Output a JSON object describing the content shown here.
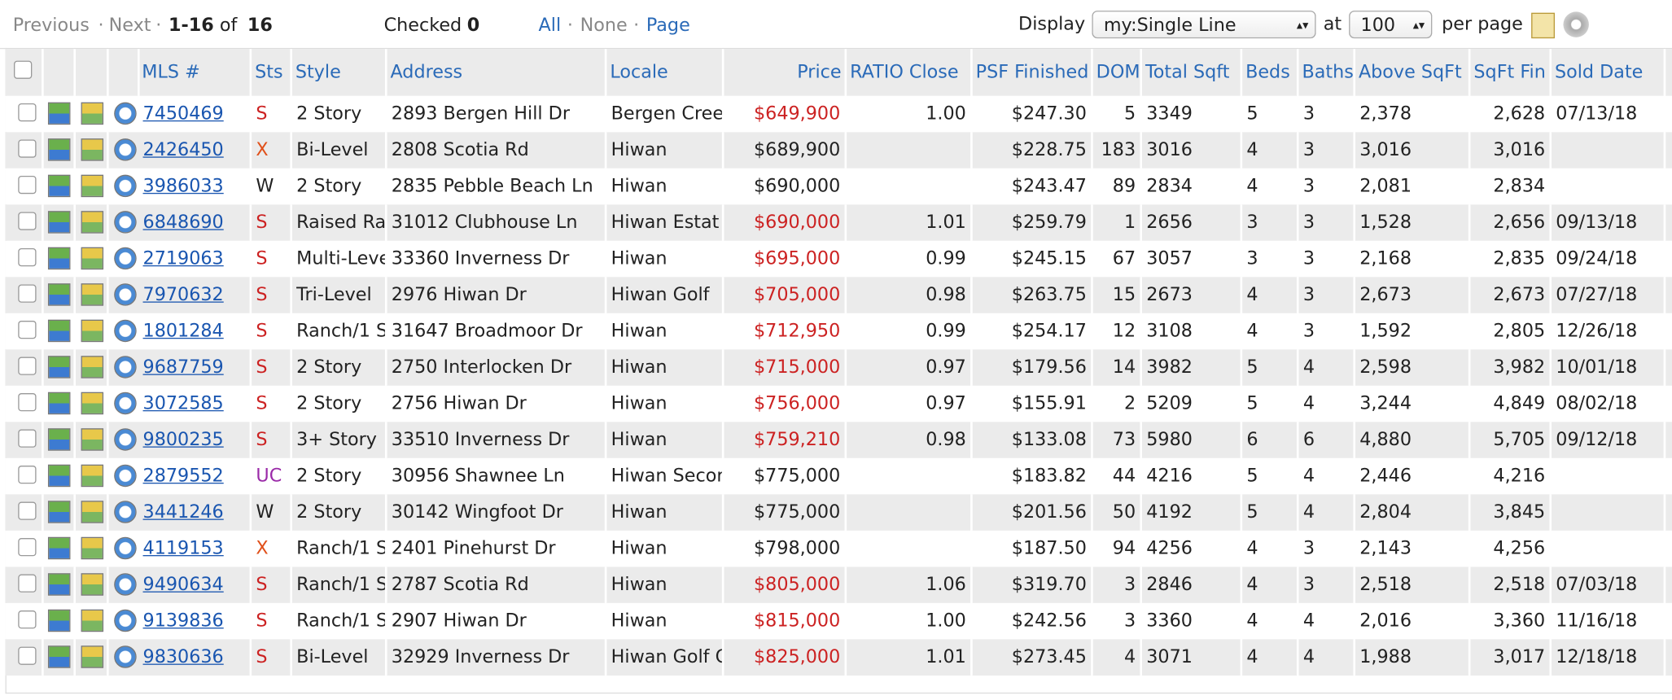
{
  "pager": {
    "previous": "Previous",
    "separator": "·",
    "next": "Next",
    "range": "1-16",
    "of": "of",
    "total": "16"
  },
  "checked": {
    "label": "Checked",
    "count": "0"
  },
  "select": {
    "all": "All",
    "none": "None",
    "page": "Page"
  },
  "display": {
    "label": "Display",
    "view": "my:Single Line",
    "at": "at",
    "per_page": "100",
    "per_page_label": "per page"
  },
  "table": {
    "headers": [
      "MLS #",
      "Sts",
      "Style",
      "Address",
      "Locale",
      "Price",
      "RATIO Close",
      "PSF Finished",
      "DOM",
      "Total Sqft",
      "Beds",
      "Baths",
      "Above SqFt",
      "SqFt Fin",
      "Sold Date"
    ],
    "rows": [
      [
        "7450469",
        "S",
        "2 Story",
        "2893 Bergen Hill Dr",
        "Bergen Cree",
        "$649,900",
        "1.00",
        "$247.30",
        "5",
        "3349",
        "5",
        "3",
        "2,378",
        "2,628",
        "07/13/18"
      ],
      [
        "2426450",
        "X",
        "Bi-Level",
        "2808 Scotia Rd",
        "Hiwan",
        "$689,900",
        null,
        "$228.75",
        "183",
        "3016",
        "4",
        "3",
        "3,016",
        "3,016",
        null
      ],
      [
        "3986033",
        "W",
        "2 Story",
        "2835 Pebble Beach Ln",
        "Hiwan",
        "$690,000",
        null,
        "$243.47",
        "89",
        "2834",
        "4",
        "3",
        "2,081",
        "2,834",
        null
      ],
      [
        "6848690",
        "S",
        "Raised Ra",
        "31012 Clubhouse Ln",
        "Hiwan Estat",
        "$690,000",
        "1.01",
        "$259.79",
        "1",
        "2656",
        "3",
        "3",
        "1,528",
        "2,656",
        "09/13/18"
      ],
      [
        "2719063",
        "S",
        "Multi-Leve",
        "33360 Inverness Dr",
        "Hiwan",
        "$695,000",
        "0.99",
        "$245.15",
        "67",
        "3057",
        "3",
        "3",
        "2,168",
        "2,835",
        "09/24/18"
      ],
      [
        "7970632",
        "S",
        "Tri-Level",
        "2976 Hiwan Dr",
        "Hiwan Golf",
        "$705,000",
        "0.98",
        "$263.75",
        "15",
        "2673",
        "4",
        "3",
        "2,673",
        "2,673",
        "07/27/18"
      ],
      [
        "1801284",
        "S",
        "Ranch/1 S",
        "31647 Broadmoor Dr",
        "Hiwan",
        "$712,950",
        "0.99",
        "$254.17",
        "12",
        "3108",
        "4",
        "3",
        "1,592",
        "2,805",
        "12/26/18"
      ],
      [
        "9687759",
        "S",
        "2 Story",
        "2750 Interlocken Dr",
        "Hiwan",
        "$715,000",
        "0.97",
        "$179.56",
        "14",
        "3982",
        "5",
        "4",
        "2,598",
        "3,982",
        "10/01/18"
      ],
      [
        "3072585",
        "S",
        "2 Story",
        "2756 Hiwan Dr",
        "Hiwan",
        "$756,000",
        "0.97",
        "$155.91",
        "2",
        "5209",
        "5",
        "4",
        "3,244",
        "4,849",
        "08/02/18"
      ],
      [
        "9800235",
        "S",
        "3+ Story",
        "33510 Inverness Dr",
        "Hiwan",
        "$759,210",
        "0.98",
        "$133.08",
        "73",
        "5980",
        "6",
        "6",
        "4,880",
        "5,705",
        "09/12/18"
      ],
      [
        "2879552",
        "UC",
        "2 Story",
        "30956 Shawnee Ln",
        "Hiwan Secor",
        "$775,000",
        null,
        "$183.82",
        "44",
        "4216",
        "5",
        "4",
        "2,446",
        "4,216",
        null
      ],
      [
        "3441246",
        "W",
        "2 Story",
        "30142 Wingfoot Dr",
        "Hiwan",
        "$775,000",
        null,
        "$201.56",
        "50",
        "4192",
        "5",
        "4",
        "2,804",
        "3,845",
        null
      ],
      [
        "4119153",
        "X",
        "Ranch/1 S",
        "2401 Pinehurst Dr",
        "Hiwan",
        "$798,000",
        null,
        "$187.50",
        "94",
        "4256",
        "4",
        "3",
        "2,143",
        "4,256",
        null
      ],
      [
        "9490634",
        "S",
        "Ranch/1 S",
        "2787 Scotia Rd",
        "Hiwan",
        "$805,000",
        "1.06",
        "$319.70",
        "3",
        "2846",
        "4",
        "3",
        "2,518",
        "2,518",
        "07/03/18"
      ],
      [
        "9139836",
        "S",
        "Ranch/1 S",
        "2907 Hiwan Dr",
        "Hiwan",
        "$815,000",
        "1.00",
        "$242.56",
        "3",
        "3360",
        "4",
        "4",
        "2,016",
        "3,360",
        "11/16/18"
      ],
      [
        "9830636",
        "S",
        "Bi-Level",
        "32929 Inverness Dr",
        "Hiwan Golf C",
        "$825,000",
        "1.01",
        "$273.45",
        "4",
        "3071",
        "4",
        "4",
        "1,988",
        "3,017",
        "12/18/18"
      ]
    ]
  }
}
